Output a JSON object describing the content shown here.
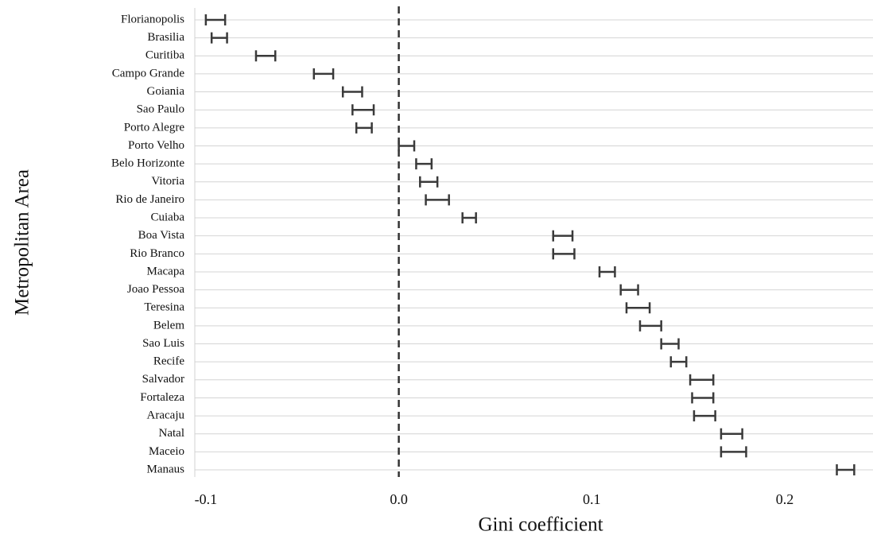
{
  "chart_data": {
    "type": "interval",
    "x_label": "Gini coefficient",
    "y_label": "Metropolitan Area",
    "categories": [
      "Florianopolis",
      "Brasilia",
      "Curitiba",
      "Campo Grande",
      "Goiania",
      "Sao Paulo",
      "Porto Alegre",
      "Porto Velho",
      "Belo Horizonte",
      "Vitoria",
      "Rio de Janeiro",
      "Cuiaba",
      "Boa Vista",
      "Rio Branco",
      "Macapa",
      "Joao Pessoa",
      "Teresina",
      "Belem",
      "Sao Luis",
      "Recife",
      "Salvador",
      "Fortaleza",
      "Aracaju",
      "Natal",
      "Maceio",
      "Manaus"
    ],
    "low": [
      -0.1,
      -0.097,
      -0.074,
      -0.044,
      -0.029,
      -0.024,
      -0.022,
      0.0,
      0.009,
      0.011,
      0.014,
      0.033,
      0.08,
      0.08,
      0.104,
      0.115,
      0.118,
      0.125,
      0.136,
      0.141,
      0.151,
      0.152,
      0.153,
      0.167,
      0.167,
      0.227
    ],
    "high": [
      -0.09,
      -0.089,
      -0.064,
      -0.034,
      -0.019,
      -0.013,
      -0.014,
      0.008,
      0.017,
      0.02,
      0.026,
      0.04,
      0.09,
      0.091,
      0.112,
      0.124,
      0.13,
      0.136,
      0.145,
      0.149,
      0.163,
      0.163,
      0.164,
      0.178,
      0.18,
      0.236
    ],
    "color": "#3a3a3a",
    "ref_line": 0,
    "xlim": [
      -0.1016,
      0.2445
    ],
    "xticks": [
      -0.1,
      {
        "value": 0,
        "label": "0.0"
      },
      0.1,
      0.2
    ]
  }
}
